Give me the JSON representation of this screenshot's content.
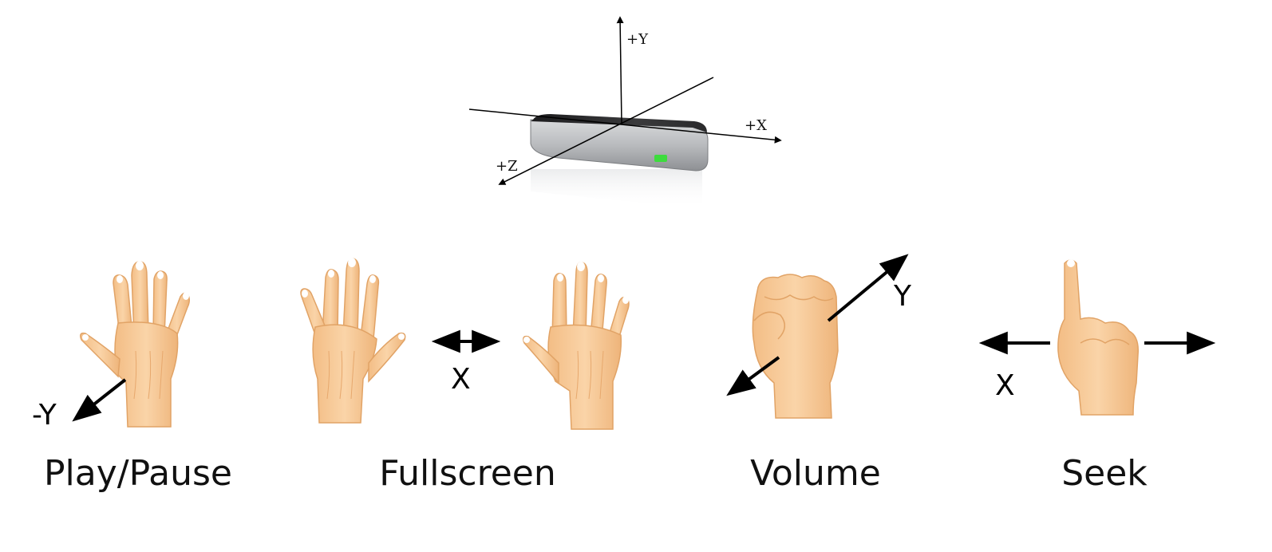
{
  "device": {
    "axis_labels": {
      "y": "+Y",
      "x": "+X",
      "z": "+Z"
    },
    "status_led_color": "#3ddc3d"
  },
  "gestures": [
    {
      "caption": "Play/Pause",
      "axis_label": "-Y",
      "icon": "open-hand-icon"
    },
    {
      "caption": "Fullscreen",
      "axis_label": "X",
      "icon": "open-hand-pair-icon"
    },
    {
      "caption": "Volume",
      "axis_label": "Y",
      "icon": "fist-icon"
    },
    {
      "caption": "Seek",
      "axis_label": "X",
      "icon": "pointing-finger-icon"
    }
  ],
  "colors": {
    "skin": "#f7cb9a",
    "skin_shadow": "#e9ab72",
    "nail": "#ffffff",
    "arrow": "#000000"
  }
}
